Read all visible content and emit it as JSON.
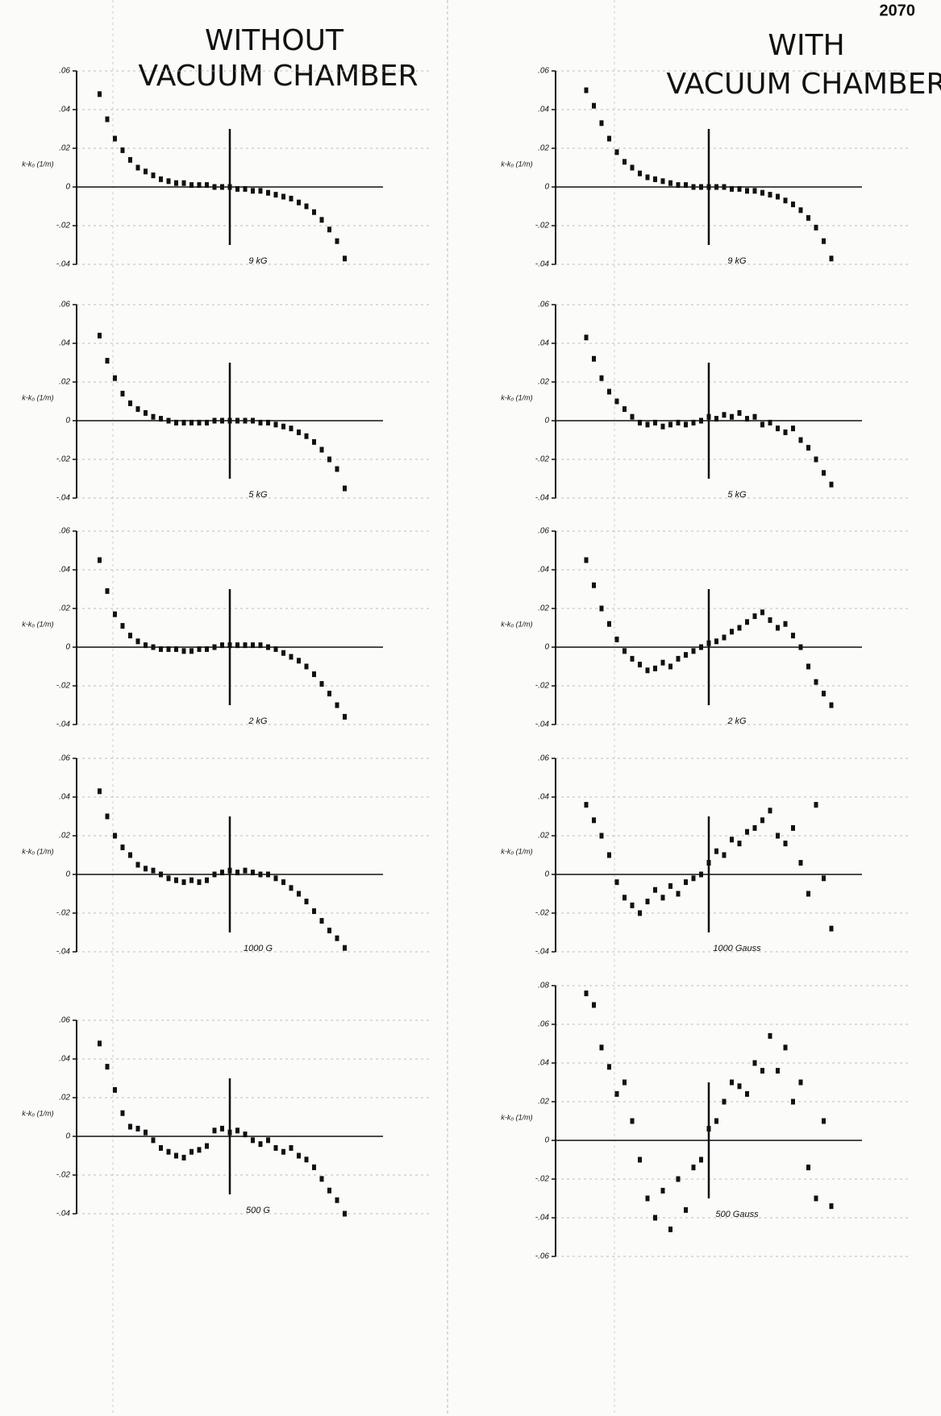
{
  "header": {
    "page_number": "2070",
    "left_title": [
      "WITHOUT",
      "VACUUM CHAMBER"
    ],
    "right_title": [
      "WITH",
      "VACUUM CHAMBER"
    ]
  },
  "chart_data": [
    {
      "type": "scatter",
      "annotation": "9 kG",
      "y_label": "k-k₀ (1/m)",
      "color": "#111111",
      "grid": true,
      "xlim": [
        -20,
        20
      ],
      "ylim": [
        -0.04,
        0.06
      ],
      "yticks": [
        {
          "value": 0.06,
          "label": ".06"
        },
        {
          "value": 0.04,
          "label": ".04"
        },
        {
          "value": 0.02,
          "label": ".02"
        },
        0,
        {
          "value": -0.02,
          "label": "-.02"
        },
        {
          "value": -0.04,
          "label": "-.04"
        }
      ],
      "x": [
        -17,
        -16,
        -15,
        -14,
        -13,
        -12,
        -11,
        -10,
        -9,
        -8,
        -7,
        -6,
        -5,
        -4,
        -3,
        -2,
        -1,
        0,
        1,
        2,
        3,
        4,
        5,
        6,
        7,
        8,
        9,
        10,
        11,
        12,
        13,
        14,
        15
      ],
      "values": [
        0.048,
        0.035,
        0.025,
        0.019,
        0.014,
        0.01,
        0.008,
        0.006,
        0.004,
        0.003,
        0.002,
        0.002,
        0.001,
        0.001,
        0.001,
        0,
        0,
        0,
        -0.001,
        -0.001,
        -0.002,
        -0.002,
        -0.003,
        -0.004,
        -0.005,
        -0.006,
        -0.008,
        -0.01,
        -0.013,
        -0.017,
        -0.022,
        -0.028,
        -0.037
      ]
    },
    {
      "type": "scatter",
      "annotation": "5 kG",
      "y_label": "k-k₀ (1/m)",
      "color": "#111111",
      "grid": true,
      "xlim": [
        -20,
        20
      ],
      "ylim": [
        -0.04,
        0.06
      ],
      "yticks": [
        {
          "value": 0.06,
          "label": ".06"
        },
        {
          "value": 0.04,
          "label": ".04"
        },
        {
          "value": 0.02,
          "label": ".02"
        },
        0,
        {
          "value": -0.02,
          "label": "-.02"
        },
        {
          "value": -0.04,
          "label": "-.04"
        }
      ],
      "x": [
        -17,
        -16,
        -15,
        -14,
        -13,
        -12,
        -11,
        -10,
        -9,
        -8,
        -7,
        -6,
        -5,
        -4,
        -3,
        -2,
        -1,
        0,
        1,
        2,
        3,
        4,
        5,
        6,
        7,
        8,
        9,
        10,
        11,
        12,
        13,
        14,
        15
      ],
      "values": [
        0.044,
        0.031,
        0.022,
        0.014,
        0.009,
        0.006,
        0.004,
        0.002,
        0.001,
        0,
        -0.001,
        -0.001,
        -0.001,
        -0.001,
        -0.001,
        0,
        0,
        0,
        0,
        0,
        0,
        -0.001,
        -0.001,
        -0.002,
        -0.003,
        -0.004,
        -0.006,
        -0.008,
        -0.011,
        -0.015,
        -0.02,
        -0.025,
        -0.035
      ]
    },
    {
      "type": "scatter",
      "annotation": "2 kG",
      "y_label": "k-k₀ (1/m)",
      "color": "#111111",
      "grid": true,
      "xlim": [
        -20,
        20
      ],
      "ylim": [
        -0.04,
        0.06
      ],
      "yticks": [
        {
          "value": 0.06,
          "label": ".06"
        },
        {
          "value": 0.04,
          "label": ".04"
        },
        {
          "value": 0.02,
          "label": ".02"
        },
        0,
        {
          "value": -0.02,
          "label": "-.02"
        },
        {
          "value": -0.04,
          "label": "-.04"
        }
      ],
      "x": [
        -17,
        -16,
        -15,
        -14,
        -13,
        -12,
        -11,
        -10,
        -9,
        -8,
        -7,
        -6,
        -5,
        -4,
        -3,
        -2,
        -1,
        0,
        1,
        2,
        3,
        4,
        5,
        6,
        7,
        8,
        9,
        10,
        11,
        12,
        13,
        14,
        15
      ],
      "values": [
        0.045,
        0.029,
        0.017,
        0.011,
        0.006,
        0.003,
        0.001,
        0,
        -0.001,
        -0.001,
        -0.001,
        -0.002,
        -0.002,
        -0.001,
        -0.001,
        0,
        0.001,
        0.001,
        0.001,
        0.001,
        0.001,
        0.001,
        0,
        -0.001,
        -0.003,
        -0.005,
        -0.007,
        -0.01,
        -0.014,
        -0.019,
        -0.024,
        -0.03,
        -0.036
      ]
    },
    {
      "type": "scatter",
      "annotation": "1000 G",
      "y_label": "k-k₀ (1/m)",
      "color": "#111111",
      "grid": true,
      "xlim": [
        -20,
        20
      ],
      "ylim": [
        -0.04,
        0.06
      ],
      "yticks": [
        {
          "value": 0.06,
          "label": ".06"
        },
        {
          "value": 0.04,
          "label": ".04"
        },
        {
          "value": 0.02,
          "label": ".02"
        },
        0,
        {
          "value": -0.02,
          "label": "-.02"
        },
        {
          "value": -0.04,
          "label": "-.04"
        }
      ],
      "x": [
        -17,
        -16,
        -15,
        -14,
        -13,
        -12,
        -11,
        -10,
        -9,
        -8,
        -7,
        -6,
        -5,
        -4,
        -3,
        -2,
        -1,
        0,
        1,
        2,
        3,
        4,
        5,
        6,
        7,
        8,
        9,
        10,
        11,
        12,
        13,
        14,
        15
      ],
      "values": [
        0.043,
        0.03,
        0.02,
        0.014,
        0.01,
        0.005,
        0.003,
        0.002,
        0,
        -0.002,
        -0.003,
        -0.004,
        -0.003,
        -0.004,
        -0.003,
        0,
        0.001,
        0.002,
        0.001,
        0.002,
        0.001,
        0,
        0,
        -0.002,
        -0.004,
        -0.007,
        -0.01,
        -0.014,
        -0.019,
        -0.024,
        -0.029,
        -0.033,
        -0.038
      ]
    },
    {
      "type": "scatter",
      "annotation": "500 G",
      "y_label": "k-k₀ (1/m)",
      "color": "#111111",
      "grid": true,
      "xlim": [
        -20,
        20
      ],
      "ylim": [
        -0.04,
        0.06
      ],
      "yticks": [
        {
          "value": 0.06,
          "label": ".06"
        },
        {
          "value": 0.04,
          "label": ".04"
        },
        {
          "value": 0.02,
          "label": ".02"
        },
        0,
        {
          "value": -0.02,
          "label": "-.02"
        },
        {
          "value": -0.04,
          "label": "-.04"
        }
      ],
      "x": [
        -17,
        -16,
        -15,
        -14,
        -13,
        -12,
        -11,
        -10,
        -9,
        -8,
        -7,
        -6,
        -5,
        -4,
        -3,
        -2,
        -1,
        0,
        1,
        2,
        3,
        4,
        5,
        6,
        7,
        8,
        9,
        10,
        11,
        12,
        13,
        14,
        15
      ],
      "values": [
        0.048,
        0.036,
        0.024,
        0.012,
        0.005,
        0.004,
        0.002,
        -0.002,
        -0.006,
        -0.008,
        -0.01,
        -0.011,
        -0.008,
        -0.007,
        -0.005,
        0.003,
        0.004,
        0.002,
        0.003,
        0.001,
        -0.002,
        -0.004,
        -0.002,
        -0.006,
        -0.008,
        -0.006,
        -0.01,
        -0.012,
        -0.016,
        -0.022,
        -0.028,
        -0.033,
        -0.04
      ]
    },
    {
      "type": "scatter",
      "annotation": "9 kG",
      "y_label": "k-k₀ (1/m)",
      "color": "#111111",
      "grid": true,
      "xlim": [
        -20,
        20
      ],
      "ylim": [
        -0.04,
        0.06
      ],
      "yticks": [
        {
          "value": 0.06,
          "label": ".06"
        },
        {
          "value": 0.04,
          "label": ".04"
        },
        {
          "value": 0.02,
          "label": ".02"
        },
        0,
        {
          "value": -0.02,
          "label": "-.02"
        },
        {
          "value": -0.04,
          "label": "-.04"
        }
      ],
      "x": [
        -16,
        -15,
        -14,
        -13,
        -12,
        -11,
        -10,
        -9,
        -8,
        -7,
        -6,
        -5,
        -4,
        -3,
        -2,
        -1,
        0,
        1,
        2,
        3,
        4,
        5,
        6,
        7,
        8,
        9,
        10,
        11,
        12,
        13,
        14,
        15,
        16
      ],
      "values": [
        0.05,
        0.042,
        0.033,
        0.025,
        0.018,
        0.013,
        0.01,
        0.007,
        0.005,
        0.004,
        0.003,
        0.002,
        0.001,
        0.001,
        0,
        0,
        0,
        0,
        0,
        -0.001,
        -0.001,
        -0.002,
        -0.002,
        -0.003,
        -0.004,
        -0.005,
        -0.007,
        -0.009,
        -0.012,
        -0.016,
        -0.021,
        -0.028,
        -0.037
      ]
    },
    {
      "type": "scatter",
      "annotation": "5 kG",
      "y_label": "k-k₀ (1/m)",
      "color": "#111111",
      "grid": true,
      "xlim": [
        -20,
        20
      ],
      "ylim": [
        -0.04,
        0.06
      ],
      "yticks": [
        {
          "value": 0.06,
          "label": ".06"
        },
        {
          "value": 0.04,
          "label": ".04"
        },
        {
          "value": 0.02,
          "label": ".02"
        },
        0,
        {
          "value": -0.02,
          "label": "-.02"
        },
        {
          "value": -0.04,
          "label": "-.04"
        }
      ],
      "x": [
        -16,
        -15,
        -14,
        -13,
        -12,
        -11,
        -10,
        -9,
        -8,
        -7,
        -6,
        -5,
        -4,
        -3,
        -2,
        -1,
        0,
        1,
        2,
        3,
        4,
        5,
        6,
        7,
        8,
        9,
        10,
        11,
        12,
        13,
        14,
        15,
        16
      ],
      "values": [
        0.043,
        0.032,
        0.022,
        0.015,
        0.01,
        0.006,
        0.002,
        -0.001,
        -0.002,
        -0.001,
        -0.003,
        -0.002,
        -0.001,
        -0.002,
        -0.001,
        0,
        0.002,
        0.001,
        0.003,
        0.002,
        0.004,
        0.001,
        0.002,
        -0.002,
        -0.001,
        -0.004,
        -0.006,
        -0.004,
        -0.01,
        -0.014,
        -0.02,
        -0.027,
        -0.033
      ]
    },
    {
      "type": "scatter",
      "annotation": "2 kG",
      "y_label": "k-k₀ (1/m)",
      "color": "#111111",
      "grid": true,
      "xlim": [
        -20,
        20
      ],
      "ylim": [
        -0.04,
        0.06
      ],
      "yticks": [
        {
          "value": 0.06,
          "label": ".06"
        },
        {
          "value": 0.04,
          "label": ".04"
        },
        {
          "value": 0.02,
          "label": ".02"
        },
        0,
        {
          "value": -0.02,
          "label": "-.02"
        },
        {
          "value": -0.04,
          "label": "-.04"
        }
      ],
      "x": [
        -16,
        -15,
        -14,
        -13,
        -12,
        -11,
        -10,
        -9,
        -8,
        -7,
        -6,
        -5,
        -4,
        -3,
        -2,
        -1,
        0,
        1,
        2,
        3,
        4,
        5,
        6,
        7,
        8,
        9,
        10,
        11,
        12,
        13,
        14,
        15,
        16
      ],
      "values": [
        0.045,
        0.032,
        0.02,
        0.012,
        0.004,
        -0.002,
        -0.006,
        -0.009,
        -0.012,
        -0.011,
        -0.008,
        -0.01,
        -0.006,
        -0.004,
        -0.002,
        0,
        0.002,
        0.003,
        0.005,
        0.008,
        0.01,
        0.013,
        0.016,
        0.018,
        0.014,
        0.01,
        0.012,
        0.006,
        0,
        -0.01,
        -0.018,
        -0.024,
        -0.03
      ]
    },
    {
      "type": "scatter",
      "annotation": "1000 Gauss",
      "y_label": "k-k₀ (1/m)",
      "color": "#111111",
      "grid": true,
      "xlim": [
        -20,
        20
      ],
      "ylim": [
        -0.04,
        0.06
      ],
      "yticks": [
        {
          "value": 0.06,
          "label": ".06"
        },
        {
          "value": 0.04,
          "label": ".04"
        },
        {
          "value": 0.02,
          "label": ".02"
        },
        0,
        {
          "value": -0.02,
          "label": "-.02"
        },
        {
          "value": -0.04,
          "label": "-.04"
        }
      ],
      "x": [
        -16,
        -15,
        -14,
        -13,
        -12,
        -11,
        -10,
        -9,
        -8,
        -7,
        -6,
        -5,
        -4,
        -3,
        -2,
        -1,
        0,
        1,
        2,
        3,
        4,
        5,
        6,
        7,
        8,
        9,
        10,
        11,
        12,
        13,
        14,
        15,
        16
      ],
      "values": [
        0.036,
        0.028,
        0.02,
        0.01,
        -0.004,
        -0.012,
        -0.016,
        -0.02,
        -0.014,
        -0.008,
        -0.012,
        -0.006,
        -0.01,
        -0.004,
        -0.002,
        0,
        0.006,
        0.012,
        0.01,
        0.018,
        0.016,
        0.022,
        0.024,
        0.028,
        0.033,
        0.02,
        0.016,
        0.024,
        0.006,
        -0.01,
        0.036,
        -0.002,
        -0.028
      ]
    },
    {
      "type": "scatter",
      "annotation": "500 Gauss",
      "y_label": "k-k₀ (1/m)",
      "color": "#111111",
      "grid": true,
      "xlim": [
        -20,
        20
      ],
      "ylim": [
        -0.06,
        0.08
      ],
      "yticks": [
        {
          "value": 0.08,
          "label": ".08"
        },
        {
          "value": 0.06,
          "label": ".06"
        },
        {
          "value": 0.04,
          "label": ".04"
        },
        {
          "value": 0.02,
          "label": ".02"
        },
        0,
        {
          "value": -0.02,
          "label": "-.02"
        },
        {
          "value": -0.04,
          "label": "-.04"
        },
        {
          "value": -0.06,
          "label": "-.06"
        }
      ],
      "x": [
        -16,
        -15,
        -14,
        -13,
        -12,
        -11,
        -10,
        -9,
        -8,
        -7,
        -6,
        -5,
        -4,
        -3,
        -2,
        -1,
        0,
        1,
        2,
        3,
        4,
        5,
        6,
        7,
        8,
        9,
        10,
        11,
        12,
        13,
        14,
        15,
        16
      ],
      "values": [
        0.076,
        0.07,
        0.048,
        0.038,
        0.024,
        0.03,
        0.01,
        -0.01,
        -0.03,
        -0.04,
        -0.026,
        -0.046,
        -0.02,
        -0.036,
        -0.014,
        -0.01,
        0.006,
        0.01,
        0.02,
        0.03,
        0.028,
        0.024,
        0.04,
        0.036,
        0.054,
        0.036,
        0.048,
        0.02,
        0.03,
        -0.014,
        -0.03,
        0.01,
        -0.034
      ]
    }
  ]
}
